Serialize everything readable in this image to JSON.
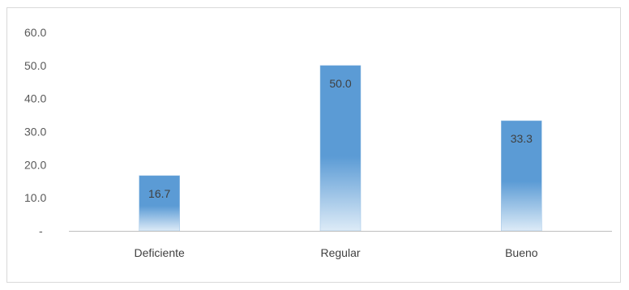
{
  "chart_data": {
    "type": "bar",
    "categories": [
      "Deficiente",
      "Regular",
      "Bueno"
    ],
    "values": [
      16.7,
      50.0,
      33.3
    ],
    "data_labels": [
      "16.7",
      "50.0",
      "33.3"
    ],
    "ylim": [
      0,
      60
    ],
    "yticks": [
      0,
      10,
      20,
      30,
      40,
      50,
      60
    ],
    "ytick_labels": [
      "-",
      "10.0",
      "20.0",
      "30.0",
      "40.0",
      "50.0",
      "60.0"
    ],
    "grid": false,
    "bar_color_top": "#5b9bd5",
    "bar_color_bottom": "#ddebf7"
  }
}
